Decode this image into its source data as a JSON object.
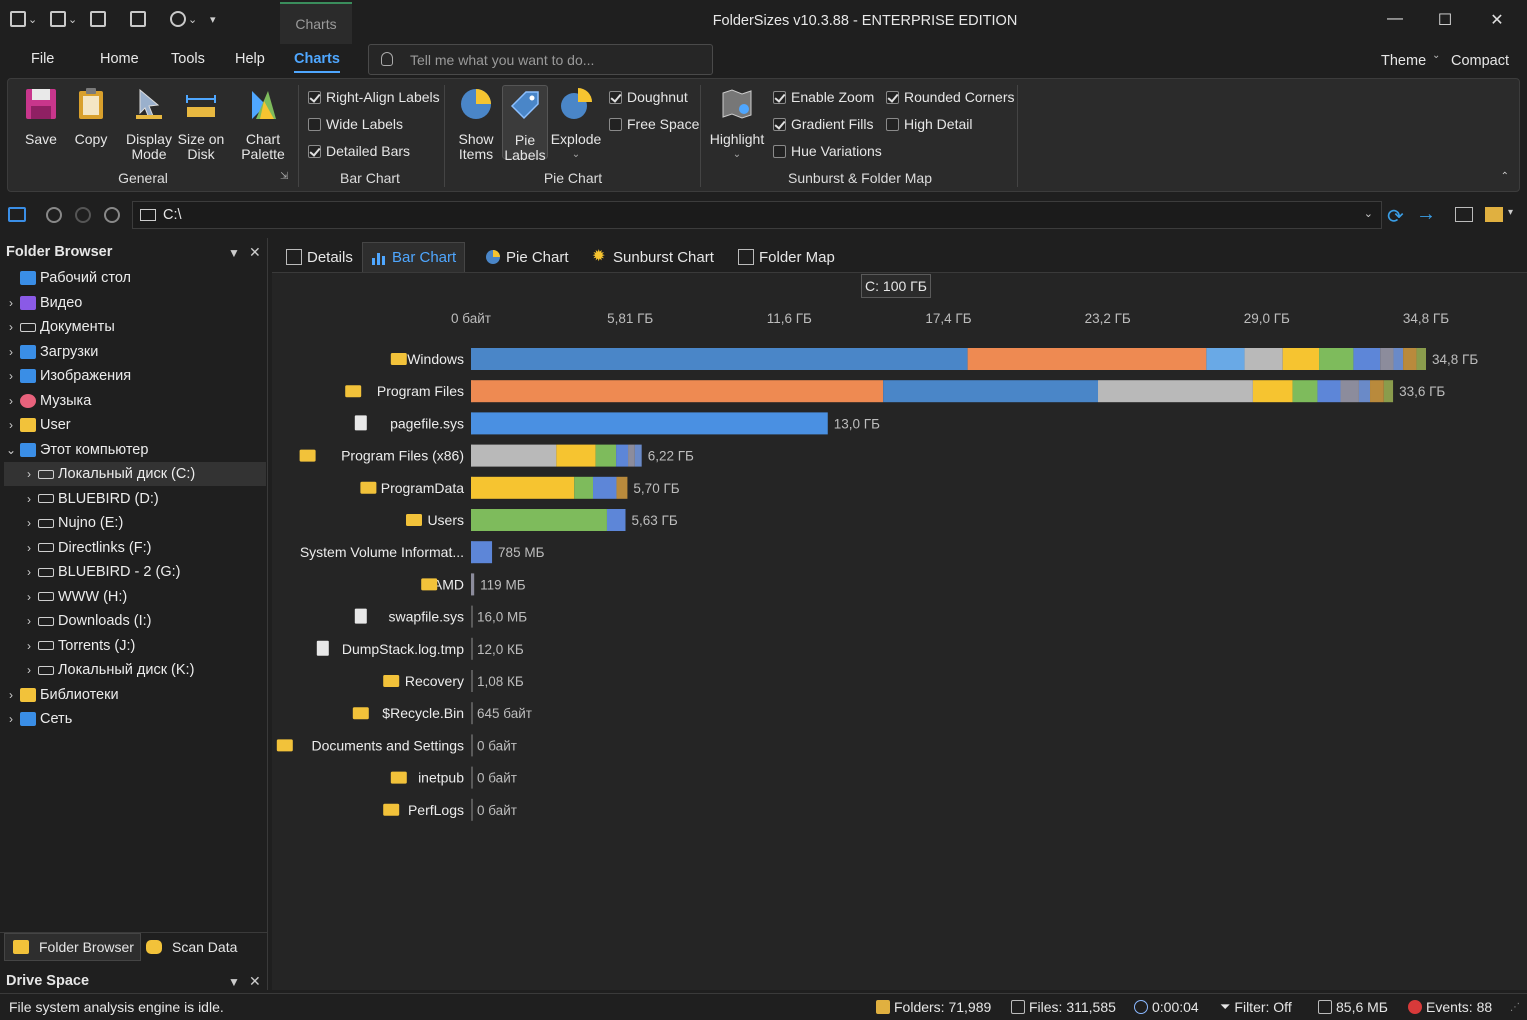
{
  "window": {
    "title": "FolderSizes v10.3.88 - ENTERPRISE EDITION",
    "context_tab": "Charts",
    "minimize": "—",
    "maximize": "☐",
    "close": "✕"
  },
  "menu": {
    "tabs": [
      "File",
      "Home",
      "Tools",
      "Help",
      "Charts"
    ],
    "active": "Charts",
    "tell_placeholder": "Tell me what you want to do...",
    "theme": "Theme",
    "compact": "Compact"
  },
  "ribbon": {
    "general": {
      "label": "General",
      "save": "Save",
      "copy": "Copy",
      "display_mode_1": "Display",
      "display_mode_2": "Mode",
      "size_on_disk_1": "Size on",
      "size_on_disk_2": "Disk",
      "chart_palette_1": "Chart",
      "chart_palette_2": "Palette"
    },
    "bar_chart": {
      "label": "Bar Chart",
      "right_align": "Right-Align Labels",
      "wide_labels": "Wide Labels",
      "detailed_bars": "Detailed Bars"
    },
    "pie_chart": {
      "label": "Pie Chart",
      "show_items_1": "Show",
      "show_items_2": "Items",
      "pie_labels_1": "Pie",
      "pie_labels_2": "Labels",
      "explode": "Explode",
      "doughnut": "Doughnut",
      "free_space": "Free Space"
    },
    "sunburst": {
      "label": "Sunburst & Folder Map",
      "highlight": "Highlight",
      "enable_zoom": "Enable Zoom",
      "gradient_fills": "Gradient Fills",
      "hue_variations": "Hue Variations",
      "rounded_corners": "Rounded Corners",
      "high_detail": "High Detail"
    }
  },
  "address": {
    "path": "C:\\"
  },
  "folder_browser": {
    "title": "Folder Browser",
    "items": [
      {
        "label": "Рабочий стол",
        "level": 0,
        "icon": "desktop-icon",
        "chev": ""
      },
      {
        "label": "Видео",
        "level": 0,
        "icon": "video-icon",
        "chev": "›"
      },
      {
        "label": "Документы",
        "level": 0,
        "icon": "documents-icon",
        "chev": "›"
      },
      {
        "label": "Загрузки",
        "level": 0,
        "icon": "downloads-icon",
        "chev": "›"
      },
      {
        "label": "Изображения",
        "level": 0,
        "icon": "pictures-icon",
        "chev": "›"
      },
      {
        "label": "Музыка",
        "level": 0,
        "icon": "music-icon",
        "chev": "›"
      },
      {
        "label": "User",
        "level": 0,
        "icon": "folder-icon",
        "chev": "›"
      },
      {
        "label": "Этот компьютер",
        "level": 0,
        "icon": "computer-icon",
        "chev": "⌄"
      },
      {
        "label": "Локальный диск (C:)",
        "level": 1,
        "icon": "drive-icon",
        "chev": "›"
      },
      {
        "label": "BLUEBIRD (D:)",
        "level": 1,
        "icon": "drive-icon",
        "chev": "›"
      },
      {
        "label": "Nujno (E:)",
        "level": 1,
        "icon": "drive-icon",
        "chev": "›"
      },
      {
        "label": "Directlinks (F:)",
        "level": 1,
        "icon": "drive-icon",
        "chev": "›"
      },
      {
        "label": "BLUEBIRD - 2 (G:)",
        "level": 1,
        "icon": "drive-icon",
        "chev": "›"
      },
      {
        "label": "WWW (H:)",
        "level": 1,
        "icon": "drive-icon",
        "chev": "›"
      },
      {
        "label": "Downloads (I:)",
        "level": 1,
        "icon": "drive-icon",
        "chev": "›"
      },
      {
        "label": "Torrents (J:)",
        "level": 1,
        "icon": "drive-icon",
        "chev": "›"
      },
      {
        "label": "Локальный диск (K:)",
        "level": 1,
        "icon": "drive-icon",
        "chev": "›"
      },
      {
        "label": "Библиотеки",
        "level": 0,
        "icon": "folder-icon",
        "chev": "›"
      },
      {
        "label": "Сеть",
        "level": 0,
        "icon": "network-icon",
        "chev": "›"
      }
    ],
    "bottom_tabs": [
      "Folder Browser",
      "Scan Data"
    ],
    "drive_space_title": "Drive Space"
  },
  "view_tabs": [
    "Details",
    "Bar Chart",
    "Pie Chart",
    "Sunburst Chart",
    "Folder Map"
  ],
  "active_view": "Bar Chart",
  "chart_data": {
    "type": "bar",
    "orientation": "horizontal",
    "drive_caption": "C:  100 ГБ",
    "x_ticks": [
      "0 байт",
      "5,81 ГБ",
      "11,6 ГБ",
      "17,4 ГБ",
      "23,2 ГБ",
      "29,0 ГБ",
      "34,8 ГБ"
    ],
    "x_max_gb": 34.8,
    "categories": [
      "Windows",
      "Program Files",
      "pagefile.sys",
      "Program Files (x86)",
      "ProgramData",
      "Users",
      "System Volume Informat...",
      "AMD",
      "swapfile.sys",
      "DumpStack.log.tmp",
      "Recovery",
      "$Recycle.Bin",
      "Documents and Settings",
      "inetpub",
      "PerfLogs"
    ],
    "kinds": [
      "folder",
      "folder",
      "file",
      "folder",
      "folder",
      "folder",
      "folder",
      "folder",
      "file",
      "file",
      "folder",
      "folder",
      "folder",
      "folder",
      "folder"
    ],
    "values_gb": [
      34.8,
      33.6,
      13.0,
      6.22,
      5.7,
      5.63,
      0.767,
      0.116,
      0.0156,
      1.14e-05,
      1.03e-06,
      6e-07,
      0,
      0,
      0
    ],
    "value_labels": [
      "34,8 ГБ",
      "33,6 ГБ",
      "13,0 ГБ",
      "6,22 ГБ",
      "5,70 ГБ",
      "5,63 ГБ",
      "785 МБ",
      "119 МБ",
      "16,0 МБ",
      "12,0 КБ",
      "1,08 КБ",
      "645 байт",
      "0 байт",
      "0 байт",
      "0 байт"
    ],
    "segments": [
      [
        [
          0.52,
          "#4a86c8"
        ],
        [
          0.25,
          "#ee8a52"
        ],
        [
          0.04,
          "#69a9e6"
        ],
        [
          0.04,
          "#b9b9b9"
        ],
        [
          0.038,
          "#f6c430"
        ],
        [
          0.036,
          "#7ebb5c"
        ],
        [
          0.028,
          "#5d86d8"
        ],
        [
          0.014,
          "#8c8c9c"
        ],
        [
          0.01,
          "#6a8ac8"
        ],
        [
          0.014,
          "#b98a3c"
        ],
        [
          0.01,
          "#8a9c4c"
        ]
      ],
      [
        [
          0.447,
          "#ee8a52"
        ],
        [
          0.233,
          "#4a86c8"
        ],
        [
          0.168,
          "#b9b9b9"
        ],
        [
          0.043,
          "#f6c430"
        ],
        [
          0.027,
          "#7ebb5c"
        ],
        [
          0.025,
          "#5d86d8"
        ],
        [
          0.02,
          "#8c8c9c"
        ],
        [
          0.012,
          "#6a8ac8"
        ],
        [
          0.015,
          "#b98a3c"
        ],
        [
          0.01,
          "#8a9c4c"
        ]
      ],
      [
        [
          1.0,
          "#4a90e2"
        ]
      ],
      [
        [
          0.5,
          "#b9b9b9"
        ],
        [
          0.23,
          "#f6c430"
        ],
        [
          0.12,
          "#7ebb5c"
        ],
        [
          0.07,
          "#5d86d8"
        ],
        [
          0.04,
          "#8c8c9c"
        ],
        [
          0.04,
          "#6a8ac8"
        ]
      ],
      [
        [
          0.66,
          "#f6c430"
        ],
        [
          0.12,
          "#7ebb5c"
        ],
        [
          0.15,
          "#5d86d8"
        ],
        [
          0.07,
          "#b98a3c"
        ]
      ],
      [
        [
          0.88,
          "#7ebb5c"
        ],
        [
          0.12,
          "#5d86d8"
        ]
      ],
      [
        [
          1.0,
          "#5d86d8"
        ]
      ],
      [
        [
          1.0,
          "#8c8c9c"
        ]
      ],
      [],
      [],
      [],
      [],
      [],
      [],
      []
    ]
  },
  "status": {
    "message": "File system analysis engine is idle.",
    "folders": "Folders: 71,989",
    "files": "Files: 311,585",
    "time": "0:00:04",
    "filter": "Filter: Off",
    "memory": "85,6 МБ",
    "events": "Events: 88"
  }
}
